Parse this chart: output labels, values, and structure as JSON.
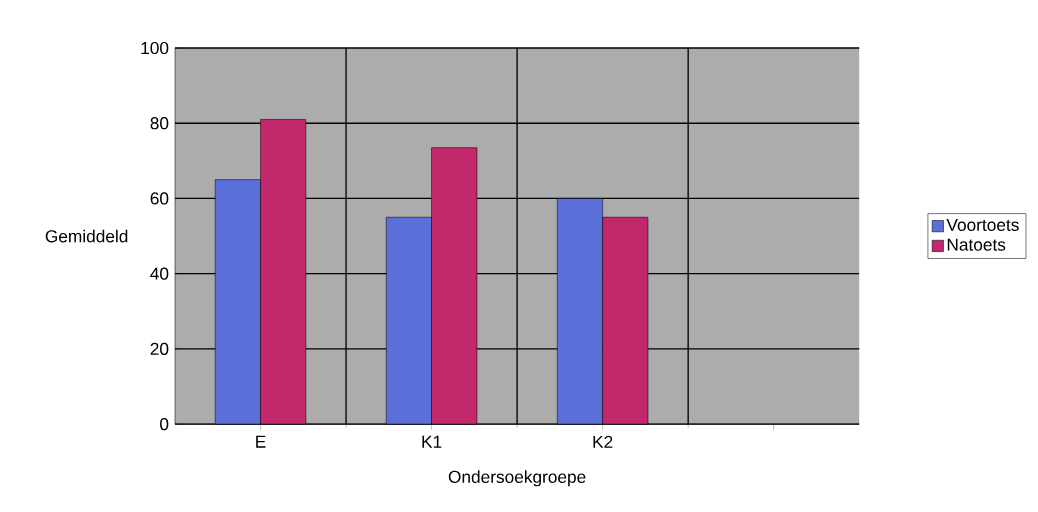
{
  "chart_data": {
    "type": "bar",
    "xlabel": "Ondersoekgroepe",
    "ylabel": "Gemiddeld",
    "categories": [
      "E",
      "K1",
      "K2",
      null
    ],
    "series": [
      {
        "name": "Voortoets",
        "color": "#5b6fd8",
        "values": [
          65,
          55,
          60,
          null
        ]
      },
      {
        "name": "Natoets",
        "color": "#c4286c",
        "values": [
          81,
          73.5,
          55,
          null
        ]
      }
    ],
    "ylim": [
      0,
      100
    ],
    "yticks": [
      0,
      20,
      40,
      60,
      80,
      100
    ],
    "grid": true,
    "legend": "right"
  }
}
